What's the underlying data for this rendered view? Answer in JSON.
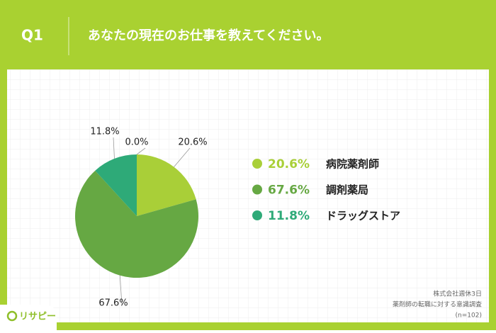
{
  "header": {
    "question_no": "Q1",
    "question": "あなたの現在のお仕事を教えてください。"
  },
  "chart_data": {
    "type": "pie",
    "categories": [
      "病院薬剤師",
      "調剤薬局",
      "ドラッグストア",
      null
    ],
    "values": [
      20.6,
      67.6,
      11.8,
      0.0
    ],
    "value_labels": [
      "20.6%",
      "67.6%",
      "11.8%",
      "0.0%"
    ],
    "colors": [
      "#a9cf38",
      "#66a843",
      "#2eaa78"
    ]
  },
  "footer": {
    "company": "株式会社週休3日",
    "survey": "薬剤師の転職に対する意識調査",
    "sample": "(n=102)",
    "logo": "リサピー"
  }
}
